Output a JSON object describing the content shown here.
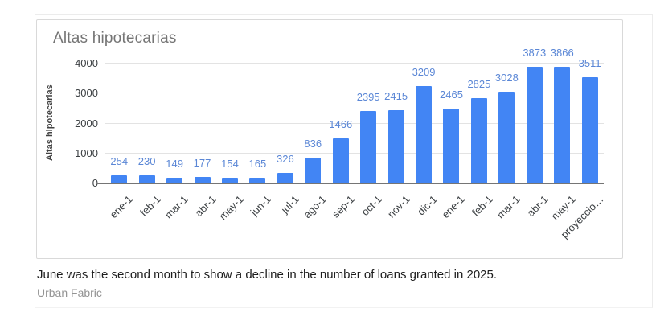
{
  "chart_data": {
    "type": "bar",
    "title": "Altas hipotecarias",
    "xlabel": "",
    "ylabel": "Altas hipotecarias",
    "categories": [
      "ene-1",
      "feb-1",
      "mar-1",
      "abr-1",
      "may-1",
      "jun-1",
      "jul-1",
      "ago-1",
      "sep-1",
      "oct-1",
      "nov-1",
      "dic-1",
      "ene-1",
      "feb-1",
      "mar-1",
      "abr-1",
      "may-1",
      "proyeccio…"
    ],
    "values": [
      254,
      230,
      149,
      177,
      154,
      165,
      326,
      836,
      1466,
      2395,
      2415,
      3209,
      2465,
      2825,
      3028,
      3873,
      3866,
      3511
    ],
    "yticks": [
      0,
      1000,
      2000,
      3000,
      4000
    ],
    "ylim": [
      0,
      4000
    ],
    "grid": true,
    "legend": "none",
    "bar_color": "#4285f4",
    "value_label_color": "#5b87d6"
  },
  "caption": {
    "text": "June was the second month to show a decline in the number of loans granted in 2025.",
    "source": "Urban Fabric"
  }
}
